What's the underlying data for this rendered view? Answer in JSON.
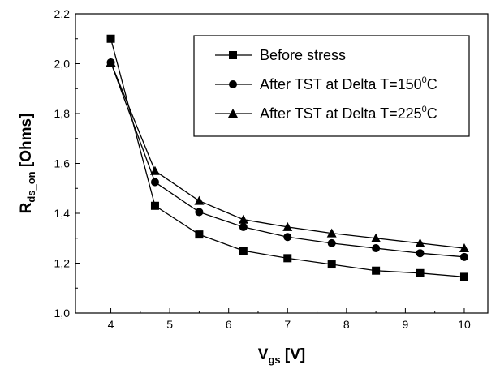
{
  "chart_data": {
    "type": "line",
    "x": [
      4,
      4.75,
      5.5,
      6.25,
      7,
      7.75,
      8.5,
      9.25,
      10
    ],
    "xlim": [
      3.4,
      10.4
    ],
    "ylim": [
      1.0,
      2.2
    ],
    "xticks": [
      "4",
      "5",
      "6",
      "7",
      "8",
      "9",
      "10"
    ],
    "yticks": [
      "1,0",
      "1,2",
      "1,4",
      "1,6",
      "1,8",
      "2,0",
      "2,2"
    ],
    "xlabel": {
      "main": "V",
      "sub": "gs",
      "unit": " [V]"
    },
    "ylabel": {
      "main": "R",
      "sub": "ds_on",
      "unit": " [Ohms]"
    },
    "grid": false,
    "legend_position": "top-right",
    "series": [
      {
        "name": "Before stress",
        "legend": {
          "prefix": "Before stress",
          "sup": "",
          "suffix": ""
        },
        "marker": "square",
        "values": [
          2.1,
          1.43,
          1.315,
          1.25,
          1.22,
          1.195,
          1.17,
          1.16,
          1.145
        ]
      },
      {
        "name": "After TST at Delta T=150°C",
        "legend": {
          "prefix": "After TST at Delta T=150",
          "sup": "0",
          "suffix": "C"
        },
        "marker": "circle",
        "values": [
          2.005,
          1.525,
          1.405,
          1.345,
          1.305,
          1.28,
          1.26,
          1.24,
          1.225
        ]
      },
      {
        "name": "After TST at Delta T=225°C",
        "legend": {
          "prefix": "After TST at Delta T=225",
          "sup": "0",
          "suffix": "C"
        },
        "marker": "triangle",
        "values": [
          2.005,
          1.57,
          1.45,
          1.375,
          1.345,
          1.32,
          1.3,
          1.28,
          1.26
        ]
      }
    ]
  }
}
